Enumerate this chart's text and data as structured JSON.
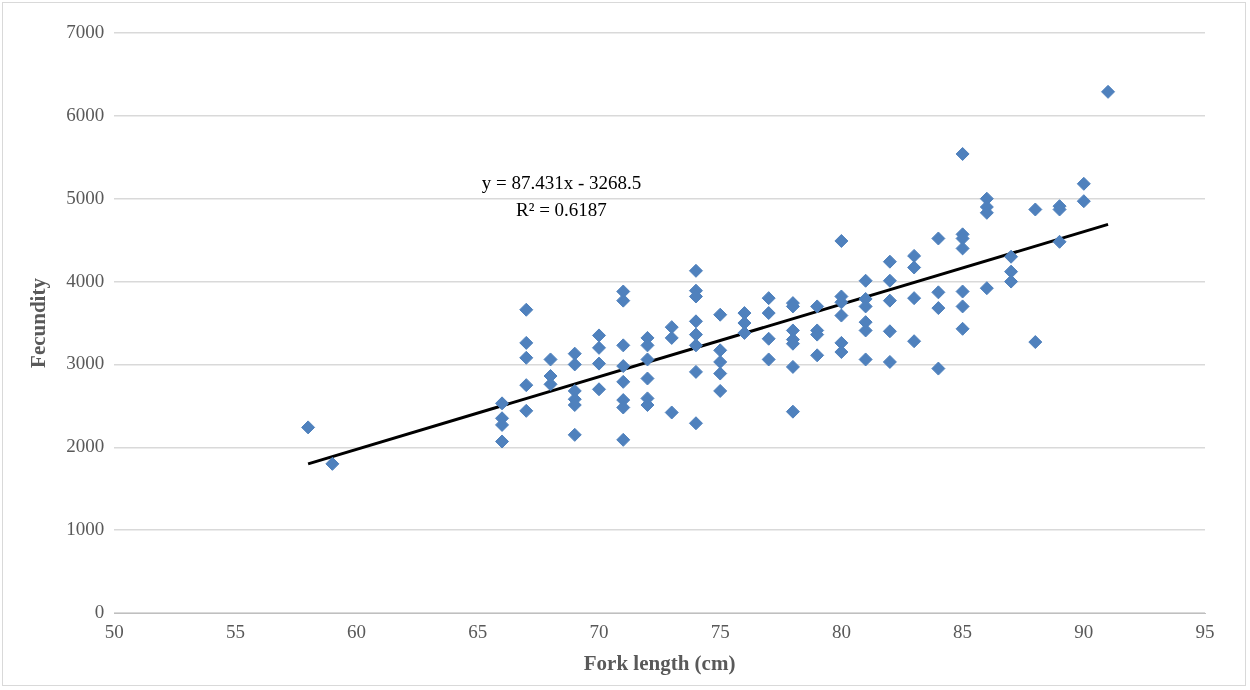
{
  "chart_data": {
    "type": "scatter",
    "xlabel": "Fork length (cm)",
    "ylabel": "Fecundity",
    "annotations": [
      "y = 87.431x - 3268.5",
      "R² = 0.6187"
    ],
    "xlim": [
      50,
      95
    ],
    "xticks": [
      50,
      55,
      60,
      65,
      70,
      75,
      80,
      85,
      90,
      95
    ],
    "ylim": [
      0,
      7000
    ],
    "yticks": [
      0,
      1000,
      2000,
      3000,
      4000,
      5000,
      6000,
      7000
    ],
    "grid": "y",
    "legend": false,
    "marker": "diamond",
    "series": [
      {
        "color": "#4f81bd",
        "x": [
          58,
          59,
          66,
          66,
          66,
          66,
          67,
          67,
          67,
          67,
          67,
          68,
          68,
          68,
          69,
          69,
          69,
          69,
          69,
          69,
          70,
          70,
          70,
          70,
          71,
          71,
          71,
          71,
          71,
          71,
          71,
          71,
          72,
          72,
          72,
          72,
          72,
          72,
          73,
          73,
          73,
          74,
          74,
          74,
          74,
          74,
          74,
          74,
          74,
          75,
          75,
          75,
          75,
          75,
          76,
          76,
          76,
          77,
          77,
          77,
          77,
          78,
          78,
          78,
          78,
          78,
          78,
          78,
          79,
          79,
          79,
          79,
          80,
          80,
          80,
          80,
          80,
          80,
          81,
          81,
          81,
          81,
          81,
          81,
          82,
          82,
          82,
          82,
          82,
          83,
          83,
          83,
          83,
          84,
          84,
          84,
          84,
          85,
          85,
          85,
          85,
          85,
          85,
          85,
          86,
          86,
          86,
          86,
          87,
          87,
          87,
          88,
          88,
          89,
          89,
          89,
          90,
          90,
          91
        ],
        "values": [
          2240,
          1800,
          2530,
          2350,
          2270,
          2070,
          3660,
          3260,
          3080,
          2750,
          2440,
          3060,
          2860,
          2760,
          3130,
          3000,
          2680,
          2580,
          2510,
          2150,
          3350,
          3200,
          3010,
          2700,
          3880,
          3770,
          3230,
          2980,
          2790,
          2570,
          2480,
          2090,
          3320,
          3230,
          3060,
          2830,
          2590,
          2510,
          3450,
          3320,
          2420,
          4130,
          3890,
          3820,
          3520,
          3360,
          3230,
          2910,
          2290,
          3600,
          3170,
          3030,
          2890,
          2680,
          3620,
          3500,
          3380,
          3800,
          3620,
          3310,
          3060,
          3740,
          3700,
          3410,
          3300,
          3250,
          2970,
          2430,
          3700,
          3410,
          3360,
          3110,
          4490,
          3820,
          3750,
          3590,
          3260,
          3150,
          4010,
          3790,
          3700,
          3510,
          3410,
          3060,
          4240,
          4010,
          3770,
          3400,
          3030,
          4310,
          4170,
          3800,
          3280,
          4520,
          3870,
          3680,
          2950,
          5540,
          4570,
          4520,
          4400,
          3880,
          3700,
          3430,
          5000,
          4900,
          4830,
          3920,
          4300,
          4120,
          4000,
          4870,
          3270,
          4910,
          4870,
          4480,
          5180,
          4970,
          6290
        ]
      },
      {
        "type": "line",
        "color": "#000000",
        "marker": "none",
        "line_style": "solid",
        "x": [
          58,
          91
        ],
        "values": [
          1800,
          4690
        ]
      }
    ]
  }
}
